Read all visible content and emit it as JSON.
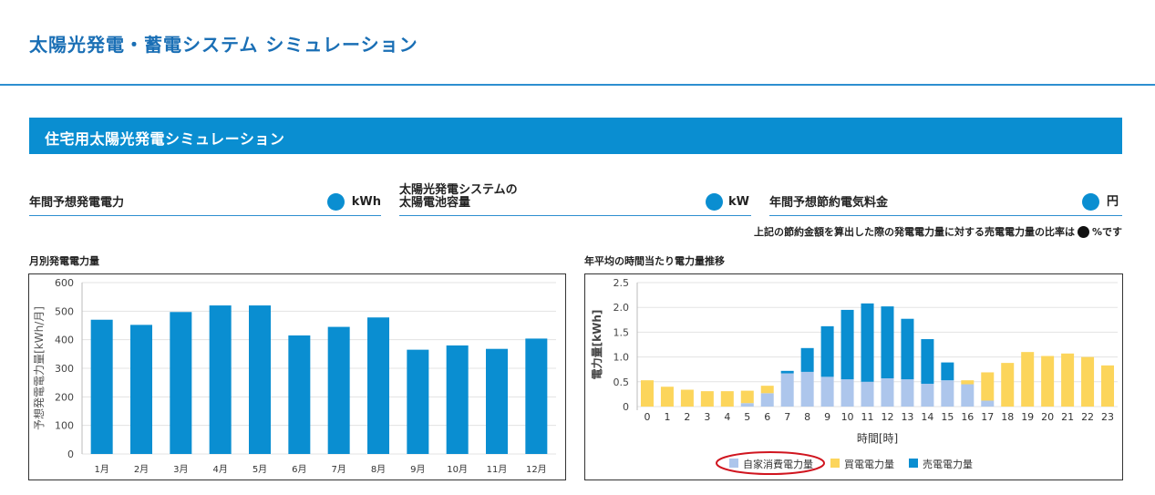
{
  "header": {
    "title": "太陽光発電・蓄電システム シミュレーション"
  },
  "section": {
    "title": "住宅用太陽光発電シミュレーション"
  },
  "stats": [
    {
      "label": "年間予想発電電力",
      "unit": "kWh"
    },
    {
      "label": "太陽光発電システムの\n太陽電池容量",
      "unit": "kW"
    },
    {
      "label": "年間予想節約電気料金",
      "unit": "円"
    }
  ],
  "ratio_note": {
    "text": "上記の節約金額を算出した際の発電電力量に対する売電電力量の比率は",
    "unit": "%です"
  },
  "colors": {
    "brand": "#0a8ed1",
    "self": "#adc6ec",
    "buy": "#fcd55b",
    "sell": "#0a8ed1",
    "highlight": "#d0151f"
  },
  "charts": {
    "monthly_title": "月別発電電力量",
    "hourly_title": "年平均の時間当たり電力量推移"
  },
  "chart_data": [
    {
      "type": "bar",
      "categories": [
        "1月",
        "2月",
        "3月",
        "4月",
        "5月",
        "6月",
        "7月",
        "8月",
        "9月",
        "10月",
        "11月",
        "12月"
      ],
      "values": [
        470,
        452,
        497,
        520,
        520,
        415,
        445,
        478,
        365,
        380,
        368,
        404
      ],
      "title": "月別発電電力量",
      "xlabel": "",
      "ylabel": "予想発電電力量[kWh/月]",
      "ylim": [
        0,
        600
      ],
      "yticks": [
        0,
        100,
        200,
        300,
        400,
        500,
        600
      ],
      "grid": true
    },
    {
      "type": "bar",
      "stacked": true,
      "categories": [
        "0",
        "1",
        "2",
        "3",
        "4",
        "5",
        "6",
        "7",
        "8",
        "9",
        "10",
        "11",
        "12",
        "13",
        "14",
        "15",
        "16",
        "17",
        "18",
        "19",
        "20",
        "21",
        "22",
        "23"
      ],
      "series": [
        {
          "name": "自家消費電力量",
          "values": [
            0,
            0,
            0,
            0,
            0,
            0.07,
            0.27,
            0.67,
            0.7,
            0.6,
            0.55,
            0.5,
            0.57,
            0.55,
            0.46,
            0.53,
            0.45,
            0.12,
            0,
            0,
            0,
            0,
            0,
            0
          ]
        },
        {
          "name": "買電電力量",
          "values": [
            0.53,
            0.4,
            0.34,
            0.31,
            0.31,
            0.25,
            0.15,
            0,
            0,
            0,
            0,
            0,
            0,
            0,
            0,
            0,
            0.08,
            0.57,
            0.88,
            1.1,
            1.02,
            1.07,
            1.0,
            0.83
          ]
        },
        {
          "name": "売電電力量",
          "values": [
            0,
            0,
            0,
            0,
            0,
            0,
            0,
            0.05,
            0.48,
            1.02,
            1.4,
            1.58,
            1.45,
            1.22,
            0.9,
            0.36,
            0,
            0,
            0,
            0,
            0,
            0,
            0,
            0
          ]
        }
      ],
      "title": "年平均の時間当たり電力量推移",
      "xlabel": "時間[時]",
      "ylabel": "電力量[kWh]",
      "ylim": [
        0,
        2.5
      ],
      "yticks": [
        "0",
        "0.5",
        "1.0",
        "1.5",
        "2.0",
        "2.5"
      ],
      "grid": true,
      "legend_position": "bottom-center",
      "legend_highlight": "自家消費電力量"
    }
  ]
}
